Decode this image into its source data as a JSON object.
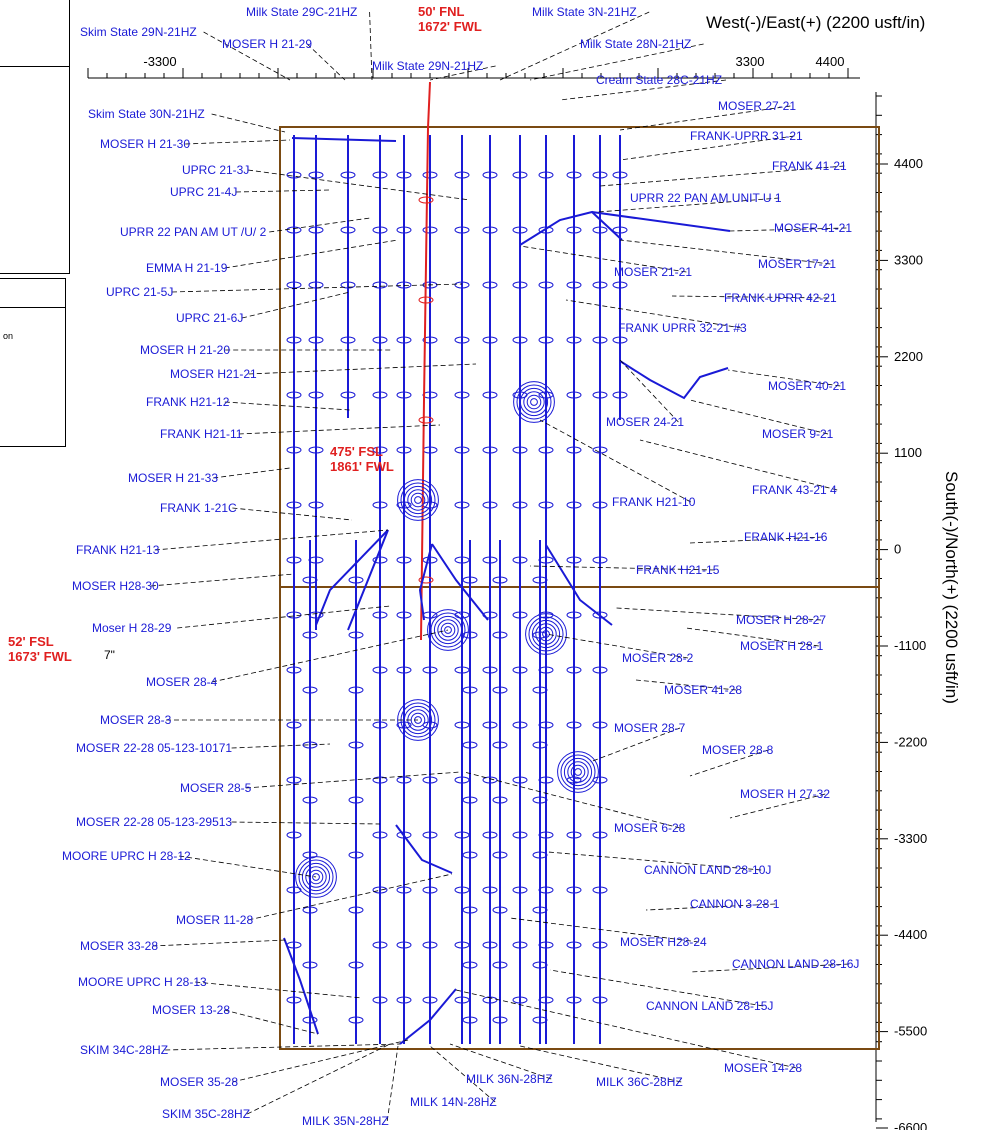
{
  "x_axis_title": "West(-)/East(+) (2200 usft/in)",
  "y_axis_title": "South(-)/North(+) (2200 usft/in)",
  "legend_fragment": "on",
  "colors": {
    "well": "#1a1ad6",
    "target": "#e02020",
    "section": "#7a4a12",
    "label": "#1a1ad6",
    "callout": "#e02020"
  },
  "x_ticks": [
    "-3300",
    "3300",
    "4400"
  ],
  "y_ticks": [
    "4400",
    "3300",
    "2200",
    "1100",
    "0",
    "-1100",
    "-2200",
    "-3300",
    "-4400",
    "-5500",
    "-6600"
  ],
  "callouts": [
    {
      "line1": "50' FNL",
      "line2": "1672' FWL"
    },
    {
      "line1": "475' FSL",
      "line2": "1861' FWL"
    },
    {
      "line1": "52' FSL",
      "line2": "1673' FWL"
    }
  ],
  "misc_label": "7\"",
  "well_labels": [
    "Milk State 29C-21HZ",
    "Skim State 29N-21HZ",
    "MOSER H 21-29",
    "Milk State 3N-21HZ",
    "Milk State 28N-21HZ",
    "Milk State 29N-21HZ",
    "Cream State 28C-21HZ",
    "Skim State 30N-21HZ",
    "MOSER 27-21",
    "MOSER H 21-30",
    "FRANK-UPRR 31-21",
    "UPRC 21-3J",
    "FRANK 41-21",
    "UPRC 21-4J",
    "UPRR 22 PAN AM UNIT U 1",
    "UPRR 22 PAN AM UT /U/ 2",
    "MOSER 41-21",
    "EMMA H 21-19",
    "MOSER 17-21",
    "MOSER 21-21",
    "UPRC 21-5J",
    "FRANK-UPRR 42-21",
    "UPRC 21-6J",
    "FRANK UPRR 32-21 #3",
    "MOSER H 21-20",
    "MOSER H21-21",
    "MOSER 40-21",
    "FRANK H21-12",
    "MOSER 24-21",
    "FRANK H21-11",
    "MOSER 9-21",
    "MOSER H 21-33",
    "FRANK 43-21 4",
    "FRANK H21-10",
    "FRANK 1-21C",
    "FRANK H21-16",
    "FRANK H21-13",
    "FRANK H21-15",
    "MOSER H28-30",
    "MOSER H 28-27",
    "Moser H 28-29",
    "MOSER H 28-1",
    "MOSER 28-2",
    "MOSER 28-4",
    "MOSER 41-28",
    "MOSER 28-3",
    "MOSER 28-7",
    "MOSER 22-28 05-123-10171",
    "MOSER 28-8",
    "MOSER 28-5",
    "MOSER H 27-32",
    "MOSER 22-28 05-123-29513",
    "MOSER 6-28",
    "MOORE UPRC H 28-12",
    "CANNON LAND 28-10J",
    "MOSER 11-28",
    "CANNON 3-28 1",
    "MOSER 33-28",
    "MOSER H28-24",
    "CANNON LAND 28-16J",
    "MOORE UPRC H 28-13",
    "CANNON LAND 28-15J",
    "MOSER 13-28",
    "SKIM 34C-28HZ",
    "MOSER 14-28",
    "MOSER 35-28",
    "MILK 36N-28HZ",
    "MILK 36C-28HZ",
    "MILK 14N-28HZ",
    "SKIM 35C-28HZ",
    "MILK 35N-28HZ"
  ]
}
